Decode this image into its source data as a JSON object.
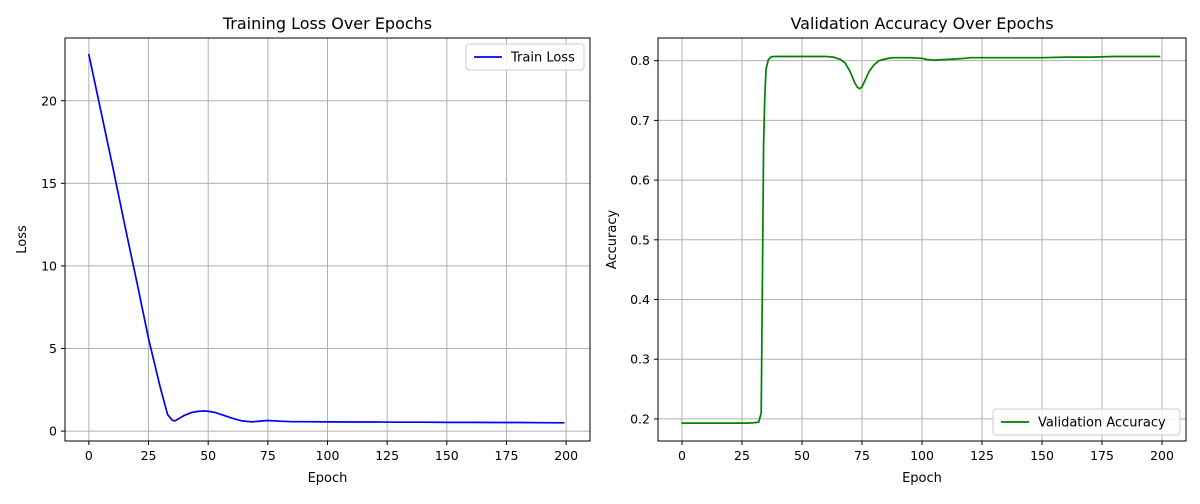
{
  "chart_data": [
    {
      "type": "line",
      "title": "Training Loss Over Epochs",
      "xlabel": "Epoch",
      "ylabel": "Loss",
      "xlim": [
        -10,
        210
      ],
      "ylim": [
        -0.6,
        23.8
      ],
      "xticks": [
        0,
        25,
        50,
        75,
        100,
        125,
        150,
        175,
        200
      ],
      "yticks": [
        0,
        5,
        10,
        15,
        20
      ],
      "grid": true,
      "legend_position": "top-right",
      "series": [
        {
          "name": "Train Loss",
          "color": "#0000ff",
          "x": [
            0,
            5,
            10,
            15,
            20,
            25,
            30,
            33,
            35,
            36,
            38,
            40,
            43,
            46,
            48,
            50,
            53,
            56,
            60,
            64,
            68,
            70,
            73,
            75,
            78,
            80,
            85,
            90,
            100,
            110,
            120,
            130,
            140,
            150,
            160,
            170,
            180,
            190,
            199
          ],
          "y": [
            22.8,
            19.4,
            16.0,
            12.5,
            9.1,
            5.6,
            2.6,
            1.0,
            0.65,
            0.62,
            0.78,
            0.95,
            1.12,
            1.2,
            1.22,
            1.2,
            1.12,
            0.98,
            0.78,
            0.62,
            0.56,
            0.58,
            0.62,
            0.64,
            0.62,
            0.6,
            0.57,
            0.57,
            0.56,
            0.55,
            0.55,
            0.54,
            0.54,
            0.53,
            0.53,
            0.52,
            0.52,
            0.51,
            0.5
          ]
        }
      ]
    },
    {
      "type": "line",
      "title": "Validation Accuracy Over Epochs",
      "xlabel": "Epoch",
      "ylabel": "Accuracy",
      "xlim": [
        -10,
        210
      ],
      "ylim": [
        0.163,
        0.838
      ],
      "xticks": [
        0,
        25,
        50,
        75,
        100,
        125,
        150,
        175,
        200
      ],
      "yticks": [
        0.2,
        0.3,
        0.4,
        0.5,
        0.6,
        0.7,
        0.8
      ],
      "grid": true,
      "legend_position": "bottom-right",
      "series": [
        {
          "name": "Validation Accuracy",
          "color": "#008000",
          "x": [
            0,
            10,
            20,
            28,
            31,
            32,
            33,
            33.5,
            34,
            34.5,
            35,
            36,
            37,
            38,
            40,
            45,
            50,
            55,
            60,
            63,
            66,
            68,
            70,
            72,
            73,
            74,
            75,
            76,
            78,
            80,
            82,
            84,
            86,
            88,
            90,
            95,
            100,
            102,
            105,
            110,
            115,
            118,
            120,
            130,
            140,
            150,
            160,
            165,
            170,
            180,
            190,
            199
          ],
          "y": [
            0.193,
            0.193,
            0.193,
            0.193,
            0.194,
            0.195,
            0.21,
            0.43,
            0.66,
            0.74,
            0.785,
            0.802,
            0.806,
            0.807,
            0.807,
            0.807,
            0.807,
            0.807,
            0.807,
            0.806,
            0.802,
            0.796,
            0.782,
            0.763,
            0.756,
            0.753,
            0.756,
            0.765,
            0.782,
            0.793,
            0.8,
            0.802,
            0.804,
            0.805,
            0.805,
            0.805,
            0.804,
            0.802,
            0.801,
            0.802,
            0.803,
            0.804,
            0.805,
            0.805,
            0.805,
            0.805,
            0.806,
            0.806,
            0.806,
            0.807,
            0.807,
            0.807
          ]
        }
      ]
    }
  ]
}
